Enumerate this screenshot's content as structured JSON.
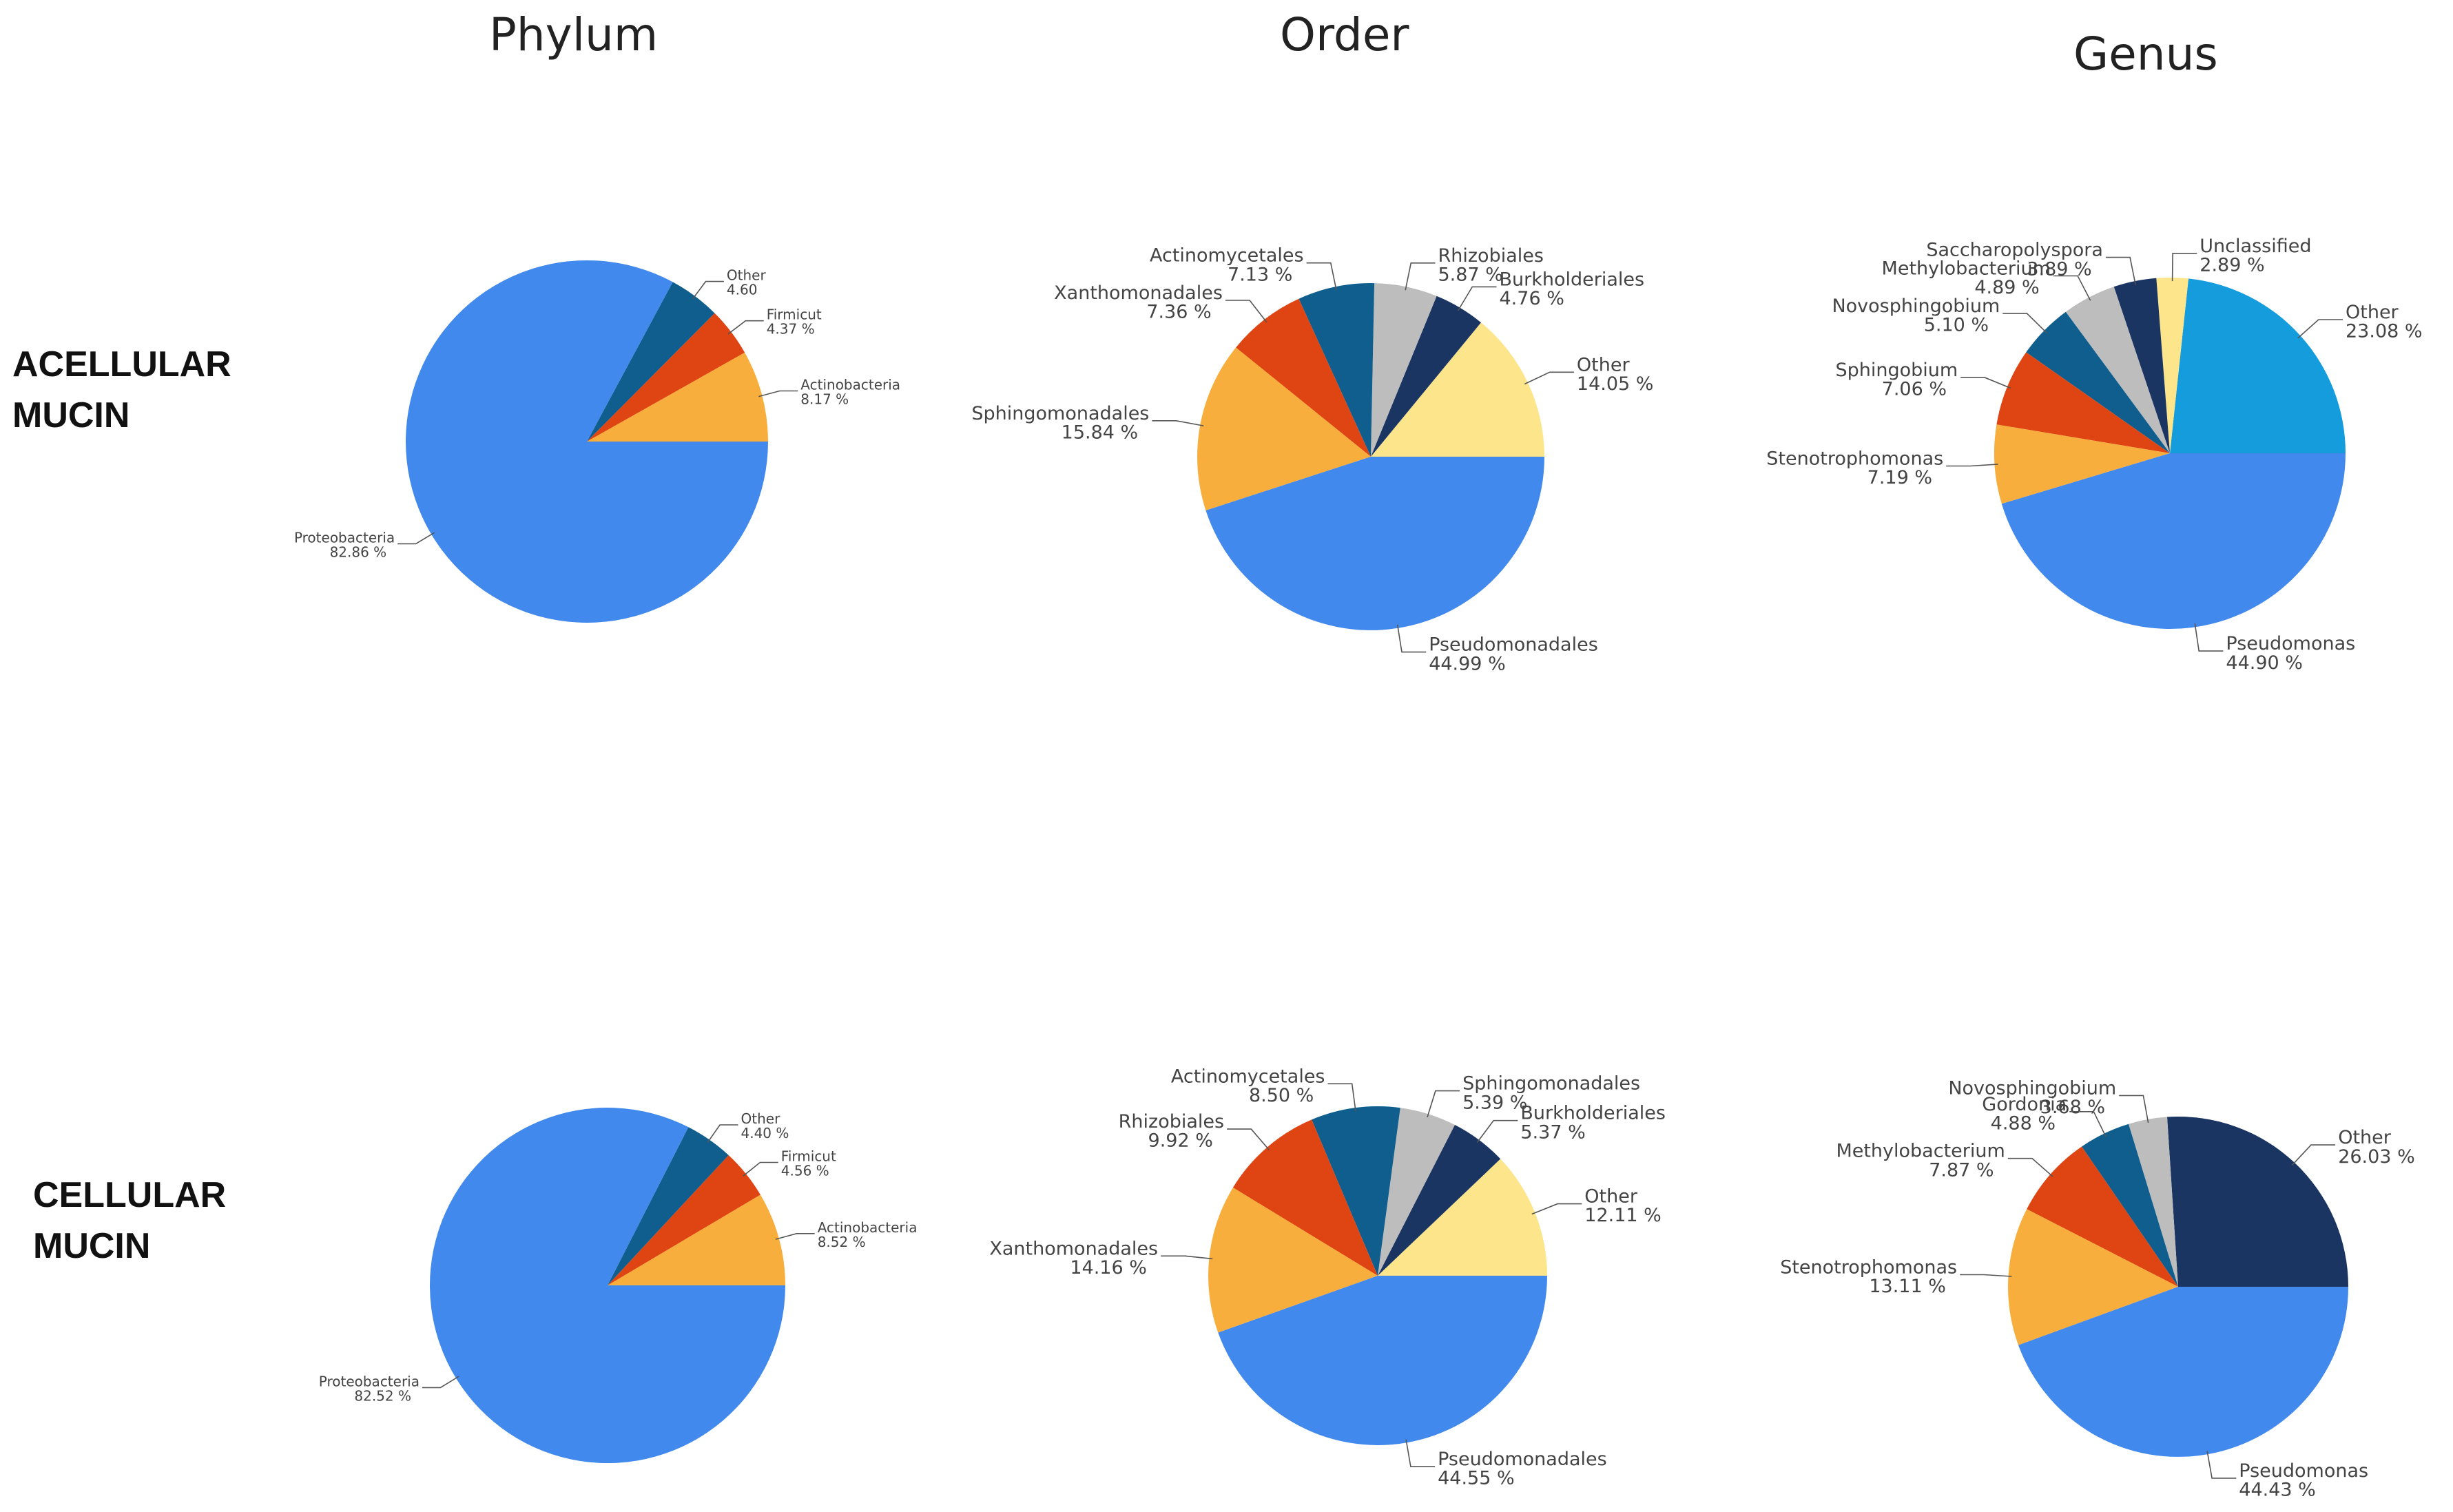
{
  "column_titles": {
    "phylum": "Phylum",
    "order": "Order",
    "genus": "Genus"
  },
  "row_labels": {
    "acellular_line1": "ACELLULAR",
    "acellular_line2": "MUCIN",
    "cellular_line1": "CELLULAR",
    "cellular_line2": "MUCIN"
  },
  "colors": {
    "blue": "#4289EE",
    "orange": "#F8AE3C",
    "red": "#DF4513",
    "teal": "#0F5E8E",
    "gray": "#BDBDBD",
    "navy": "#1B3563",
    "yellow": "#FCE58A",
    "sky": "#149CDD"
  },
  "chart_data": [
    {
      "type": "pie",
      "panel": "acellular-phylum",
      "slices": [
        {
          "name": "Actinobacteria",
          "pct_label": "8.17 %",
          "value": 8.17,
          "color": "orange"
        },
        {
          "name": "Firmicut",
          "pct_label": "4.37 %",
          "value": 4.37,
          "color": "red"
        },
        {
          "name": "Other",
          "pct_label": "4.60",
          "value": 4.6,
          "color": "teal"
        },
        {
          "name": "Proteobacteria",
          "pct_label": "82.86 %",
          "value": 82.86,
          "color": "blue"
        }
      ]
    },
    {
      "type": "pie",
      "panel": "acellular-order",
      "slices": [
        {
          "name": "Other",
          "pct_label": "14.05 %",
          "value": 14.05,
          "color": "yellow"
        },
        {
          "name": "Burkholderiales",
          "pct_label": "4.76 %",
          "value": 4.76,
          "color": "navy"
        },
        {
          "name": "Rhizobiales",
          "pct_label": "5.87 %",
          "value": 5.87,
          "color": "gray"
        },
        {
          "name": "Actinomycetales",
          "pct_label": "7.13 %",
          "value": 7.13,
          "color": "teal"
        },
        {
          "name": "Xanthomonadales",
          "pct_label": "7.36 %",
          "value": 7.36,
          "color": "red"
        },
        {
          "name": "Sphingomonadales",
          "pct_label": "15.84 %",
          "value": 15.84,
          "color": "orange"
        },
        {
          "name": "Pseudomonadales",
          "pct_label": "44.99 %",
          "value": 44.99,
          "color": "blue"
        }
      ]
    },
    {
      "type": "pie",
      "panel": "acellular-genus",
      "slices": [
        {
          "name": "Other",
          "pct_label": "23.08 %",
          "value": 23.08,
          "color": "sky"
        },
        {
          "name": "Unclassified",
          "pct_label": "2.89 %",
          "value": 2.89,
          "color": "yellow"
        },
        {
          "name": "Saccharopolyspora",
          "pct_label": "3.89 %",
          "value": 3.89,
          "color": "navy"
        },
        {
          "name": "Methylobacterium",
          "pct_label": "4.89 %",
          "value": 4.89,
          "color": "gray"
        },
        {
          "name": "Novosphingobium",
          "pct_label": "5.10 %",
          "value": 5.1,
          "color": "teal"
        },
        {
          "name": "Sphingobium",
          "pct_label": "7.06 %",
          "value": 7.06,
          "color": "red"
        },
        {
          "name": "Stenotrophomonas",
          "pct_label": "7.19 %",
          "value": 7.19,
          "color": "orange"
        },
        {
          "name": "Pseudomonas",
          "pct_label": "44.90 %",
          "value": 44.9,
          "color": "blue"
        }
      ]
    },
    {
      "type": "pie",
      "panel": "cellular-phylum",
      "slices": [
        {
          "name": "Actinobacteria",
          "pct_label": "8.52 %",
          "value": 8.52,
          "color": "orange"
        },
        {
          "name": "Firmicut",
          "pct_label": "4.56 %",
          "value": 4.56,
          "color": "red"
        },
        {
          "name": "Other",
          "pct_label": "4.40 %",
          "value": 4.4,
          "color": "teal"
        },
        {
          "name": "Proteobacteria",
          "pct_label": "82.52 %",
          "value": 82.52,
          "color": "blue"
        }
      ]
    },
    {
      "type": "pie",
      "panel": "cellular-order",
      "slices": [
        {
          "name": "Other",
          "pct_label": "12.11 %",
          "value": 12.11,
          "color": "yellow"
        },
        {
          "name": "Burkholderiales",
          "pct_label": "5.37 %",
          "value": 5.37,
          "color": "navy"
        },
        {
          "name": "Sphingomonadales",
          "pct_label": "5.39 %",
          "value": 5.39,
          "color": "gray"
        },
        {
          "name": "Actinomycetales",
          "pct_label": "8.50 %",
          "value": 8.5,
          "color": "teal"
        },
        {
          "name": "Rhizobiales",
          "pct_label": "9.92 %",
          "value": 9.92,
          "color": "red"
        },
        {
          "name": "Xanthomonadales",
          "pct_label": "14.16 %",
          "value": 14.16,
          "color": "orange"
        },
        {
          "name": "Pseudomonadales",
          "pct_label": "44.55 %",
          "value": 44.55,
          "color": "blue"
        }
      ]
    },
    {
      "type": "pie",
      "panel": "cellular-genus",
      "slices": [
        {
          "name": "Other",
          "pct_label": "26.03 %",
          "value": 26.03,
          "color": "navy"
        },
        {
          "name": "Novosphingobium",
          "pct_label": "3.68 %",
          "value": 3.68,
          "color": "gray"
        },
        {
          "name": "Gordonia",
          "pct_label": "4.88 %",
          "value": 4.88,
          "color": "teal"
        },
        {
          "name": "Methylobacterium",
          "pct_label": "7.87 %",
          "value": 7.87,
          "color": "red"
        },
        {
          "name": "Stenotrophomonas",
          "pct_label": "13.11 %",
          "value": 13.11,
          "color": "orange"
        },
        {
          "name": "Pseudomonas",
          "pct_label": "44.43 %",
          "value": 44.43,
          "color": "blue"
        }
      ]
    }
  ]
}
